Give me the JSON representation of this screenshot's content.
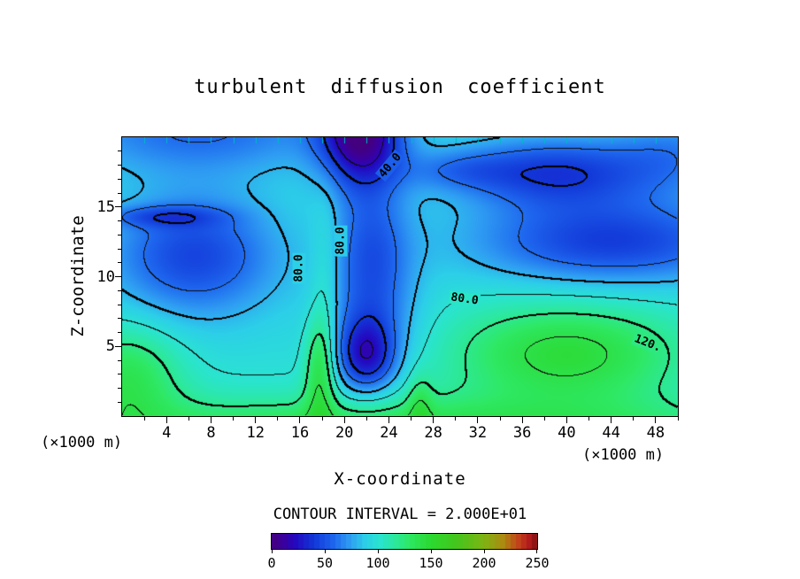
{
  "title": "turbulent diffusion coefficient",
  "axes": {
    "x_label": "X-coordinate",
    "y_label": "Z-coordinate",
    "x_units": "(×1000 m)",
    "y_units": "(×1000 m)",
    "x_tick_labels": [
      "4",
      "8",
      "12",
      "16",
      "20",
      "24",
      "28",
      "32",
      "36",
      "40",
      "44",
      "48"
    ],
    "y_tick_labels": [
      "5",
      "10",
      "15"
    ]
  },
  "footer": {
    "contour_interval_text": "CONTOUR INTERVAL = 2.000E+01"
  },
  "colorbar": {
    "min": 0,
    "max": 250,
    "step": 5,
    "tick_values": [
      0,
      50,
      100,
      150,
      200,
      250
    ],
    "tick_labels": [
      "0",
      "50",
      "100",
      "150",
      "200",
      "250"
    ]
  },
  "chart_data": {
    "type": "heatmap",
    "title": "turbulent diffusion coefficient",
    "xlabel": "X-coordinate (×1000 m)",
    "ylabel": "Z-coordinate (×1000 m)",
    "xlim": [
      0,
      50
    ],
    "ylim": [
      0,
      20
    ],
    "vlim": [
      0,
      250
    ],
    "contour_interval": 20,
    "thick_contour_levels": [
      40,
      80,
      120
    ],
    "contour_labels": [
      {
        "text": "80.0",
        "x": 15.9,
        "z": 10.6,
        "rot": -90
      },
      {
        "text": "80.0",
        "x": 19.7,
        "z": 12.6,
        "rot": -90
      },
      {
        "text": "40.0",
        "x": 24.1,
        "z": 18.0,
        "rot": -50
      },
      {
        "text": "80.0",
        "x": 30.8,
        "z": 8.35,
        "rot": 8
      },
      {
        "text": "120.",
        "x": 47.3,
        "z": 5.2,
        "rot": 22
      }
    ],
    "inner_tick_color": "#00b9c8",
    "axis_ticks": {
      "x_major_values": [
        4,
        8,
        12,
        16,
        20,
        24,
        28,
        32,
        36,
        40,
        44,
        48
      ],
      "x_minor_step": 2,
      "y_major_values": [
        5,
        10,
        15
      ],
      "y_minor_step": 1
    },
    "colormap": [
      [
        0,
        "#43007f"
      ],
      [
        12,
        "#3a00a0"
      ],
      [
        22,
        "#2408c0"
      ],
      [
        40,
        "#1238d8"
      ],
      [
        58,
        "#1e66ee"
      ],
      [
        74,
        "#2f9ef2"
      ],
      [
        88,
        "#2ccfe8"
      ],
      [
        102,
        "#2ae4cf"
      ],
      [
        116,
        "#2ce89e"
      ],
      [
        130,
        "#2ee863"
      ],
      [
        150,
        "#2bd92f"
      ],
      [
        175,
        "#46c51d"
      ],
      [
        200,
        "#7fb414"
      ],
      [
        218,
        "#ad8a10"
      ],
      [
        232,
        "#c2441a"
      ],
      [
        242,
        "#b41c1c"
      ],
      [
        250,
        "#801111"
      ]
    ],
    "field_base": 97,
    "field_gaussians": [
      {
        "a": -52,
        "x": 6.5,
        "z": 11.5,
        "sx": 5.5,
        "sz": 3.2
      },
      {
        "a": -28,
        "x": 3.5,
        "z": 14.3,
        "sx": 3.8,
        "sz": 0.55
      },
      {
        "a": -38,
        "x": 7,
        "z": 20.5,
        "sx": 9,
        "sz": 2.2
      },
      {
        "a": -92,
        "x": 21.5,
        "z": 20.5,
        "sx": 2.6,
        "sz": 2.8
      },
      {
        "a": -40,
        "x": 22.5,
        "z": 12,
        "sx": 2.5,
        "sz": 3.5
      },
      {
        "a": -62,
        "x": 22,
        "z": 4.2,
        "sx": 1.9,
        "sz": 1.9
      },
      {
        "a": -25,
        "x": 22.5,
        "z": 6.8,
        "sx": 3.2,
        "sz": 2.8
      },
      {
        "a": 42,
        "x": 17.8,
        "z": 3.5,
        "sx": 1.0,
        "sz": 2.8
      },
      {
        "a": 15,
        "x": 18.3,
        "z": 10,
        "sx": 0.9,
        "sz": 4.0
      },
      {
        "a": 48,
        "x": 24,
        "z": -1.5,
        "sx": 26,
        "sz": 2.0
      },
      {
        "a": 20,
        "x": 26.8,
        "z": 1.0,
        "sx": 0.8,
        "sz": 1.5
      },
      {
        "a": 48,
        "x": 40,
        "z": 4.5,
        "sx": 7.5,
        "sz": 2.6
      },
      {
        "a": 38,
        "x": 0.5,
        "z": 3.0,
        "sx": 3.5,
        "sz": 2.6
      },
      {
        "a": -55,
        "x": 44,
        "z": 12.5,
        "sx": 9,
        "sz": 2.2
      },
      {
        "a": -55,
        "x": 39,
        "z": 17.5,
        "sx": 6.5,
        "sz": 1.8
      },
      {
        "a": -25,
        "x": 50,
        "z": 19,
        "sx": 4,
        "sz": 2
      },
      {
        "a": -20,
        "x": 30,
        "z": 17.6,
        "sx": 3.5,
        "sz": 1.0
      }
    ]
  }
}
